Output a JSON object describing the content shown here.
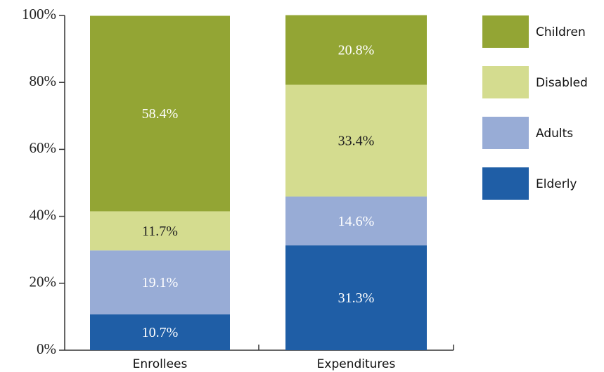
{
  "chart_data": {
    "type": "stacked_bar",
    "categories": [
      "Enrollees",
      "Expenditures"
    ],
    "series": [
      {
        "name": "Elderly",
        "color": "#1f5ea6",
        "values": [
          10.7,
          31.3
        ],
        "value_labels": [
          "10.7%",
          "31.3%"
        ]
      },
      {
        "name": "Adults",
        "color": "#98acd6",
        "values": [
          19.1,
          14.6
        ],
        "value_labels": [
          "19.1%",
          "14.6%"
        ]
      },
      {
        "name": "Disabled",
        "color": "#d4dc8f",
        "values": [
          11.7,
          33.4
        ],
        "value_labels": [
          "11.7%",
          "33.4%"
        ]
      },
      {
        "name": "Children",
        "color": "#93a534",
        "values": [
          58.4,
          20.8
        ],
        "value_labels": [
          "58.4%",
          "20.8%"
        ]
      }
    ],
    "ylim": [
      0,
      100
    ],
    "yticks": [
      {
        "value": 0,
        "label": "0%"
      },
      {
        "value": 20,
        "label": "20%"
      },
      {
        "value": 40,
        "label": "40%"
      },
      {
        "value": 60,
        "label": "60%"
      },
      {
        "value": 80,
        "label": "80%"
      },
      {
        "value": 100,
        "label": "100%"
      }
    ],
    "legend": "right"
  }
}
